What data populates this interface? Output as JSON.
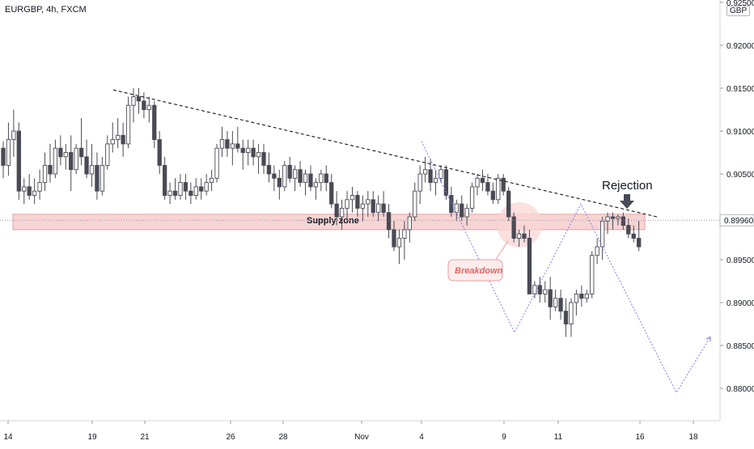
{
  "header": {
    "symbol": "EURGBP, 4h, FXCM",
    "currency": "GBP"
  },
  "chart_data": {
    "type": "candlestick",
    "y_range": [
      0.875,
      0.925
    ],
    "y_ticks": [
      "0.92500",
      "0.92000",
      "0.91500",
      "0.91000",
      "0.90500",
      "0.90000",
      "0.89500",
      "0.89000",
      "0.88500",
      "0.88000"
    ],
    "x_ticks": [
      "14",
      "19",
      "21",
      "26",
      "28",
      "Nov",
      "4",
      "9",
      "11",
      "16",
      "18"
    ],
    "current_price": 0.8996,
    "candles": [
      [
        0.908,
        0.9088,
        0.9045,
        0.906
      ],
      [
        0.906,
        0.911,
        0.9048,
        0.909
      ],
      [
        0.909,
        0.9125,
        0.907,
        0.91
      ],
      [
        0.91,
        0.911,
        0.902,
        0.903
      ],
      [
        0.903,
        0.9045,
        0.9015,
        0.9035
      ],
      [
        0.9035,
        0.905,
        0.902,
        0.9025
      ],
      [
        0.9025,
        0.9045,
        0.9015,
        0.903
      ],
      [
        0.903,
        0.9055,
        0.902,
        0.904
      ],
      [
        0.904,
        0.9075,
        0.903,
        0.906
      ],
      [
        0.906,
        0.9085,
        0.904,
        0.905
      ],
      [
        0.905,
        0.909,
        0.9045,
        0.908
      ],
      [
        0.908,
        0.9095,
        0.906,
        0.907
      ],
      [
        0.907,
        0.9085,
        0.9055,
        0.9075
      ],
      [
        0.9075,
        0.9095,
        0.903,
        0.9055
      ],
      [
        0.9055,
        0.9085,
        0.905,
        0.908
      ],
      [
        0.908,
        0.9115,
        0.906,
        0.907
      ],
      [
        0.907,
        0.909,
        0.9045,
        0.905
      ],
      [
        0.905,
        0.9085,
        0.9035,
        0.906
      ],
      [
        0.906,
        0.9075,
        0.902,
        0.903
      ],
      [
        0.903,
        0.907,
        0.9025,
        0.906
      ],
      [
        0.906,
        0.9095,
        0.9055,
        0.9085
      ],
      [
        0.9085,
        0.911,
        0.9075,
        0.909
      ],
      [
        0.909,
        0.9115,
        0.908,
        0.9095
      ],
      [
        0.9095,
        0.911,
        0.907,
        0.9085
      ],
      [
        0.9085,
        0.914,
        0.908,
        0.913
      ],
      [
        0.913,
        0.915,
        0.911,
        0.914
      ],
      [
        0.914,
        0.915,
        0.912,
        0.9135
      ],
      [
        0.9135,
        0.9145,
        0.9115,
        0.9125
      ],
      [
        0.9125,
        0.914,
        0.911,
        0.913
      ],
      [
        0.913,
        0.9135,
        0.908,
        0.909
      ],
      [
        0.909,
        0.91,
        0.905,
        0.906
      ],
      [
        0.906,
        0.907,
        0.902,
        0.9025
      ],
      [
        0.9025,
        0.904,
        0.9015,
        0.903
      ],
      [
        0.903,
        0.9045,
        0.902,
        0.9025
      ],
      [
        0.9025,
        0.905,
        0.902,
        0.904
      ],
      [
        0.904,
        0.905,
        0.902,
        0.903
      ],
      [
        0.903,
        0.904,
        0.9015,
        0.9025
      ],
      [
        0.9025,
        0.9045,
        0.902,
        0.9035
      ],
      [
        0.9035,
        0.9045,
        0.902,
        0.903
      ],
      [
        0.903,
        0.905,
        0.9025,
        0.904
      ],
      [
        0.904,
        0.9055,
        0.903,
        0.9045
      ],
      [
        0.9045,
        0.9085,
        0.904,
        0.908
      ],
      [
        0.908,
        0.9105,
        0.907,
        0.909
      ],
      [
        0.909,
        0.91,
        0.907,
        0.908
      ],
      [
        0.908,
        0.91,
        0.906,
        0.9085
      ],
      [
        0.9085,
        0.9105,
        0.9075,
        0.908
      ],
      [
        0.908,
        0.909,
        0.9055,
        0.9075
      ],
      [
        0.9075,
        0.909,
        0.906,
        0.908
      ],
      [
        0.908,
        0.909,
        0.906,
        0.907
      ],
      [
        0.907,
        0.9085,
        0.905,
        0.9075
      ],
      [
        0.9075,
        0.9085,
        0.905,
        0.906
      ],
      [
        0.906,
        0.9075,
        0.904,
        0.905
      ],
      [
        0.905,
        0.906,
        0.903,
        0.9045
      ],
      [
        0.9045,
        0.9055,
        0.902,
        0.9035
      ],
      [
        0.9035,
        0.9065,
        0.903,
        0.906
      ],
      [
        0.906,
        0.907,
        0.904,
        0.9045
      ],
      [
        0.9045,
        0.906,
        0.903,
        0.9055
      ],
      [
        0.9055,
        0.9065,
        0.9035,
        0.904
      ],
      [
        0.904,
        0.9055,
        0.9025,
        0.905
      ],
      [
        0.905,
        0.906,
        0.903,
        0.9035
      ],
      [
        0.9035,
        0.9045,
        0.902,
        0.904
      ],
      [
        0.904,
        0.9055,
        0.903,
        0.905
      ],
      [
        0.905,
        0.906,
        0.903,
        0.904
      ],
      [
        0.904,
        0.905,
        0.901,
        0.9015
      ],
      [
        0.9015,
        0.903,
        0.899,
        0.9
      ],
      [
        0.9,
        0.902,
        0.8985,
        0.901
      ],
      [
        0.901,
        0.903,
        0.8995,
        0.902
      ],
      [
        0.902,
        0.9035,
        0.9005,
        0.9025
      ],
      [
        0.9025,
        0.903,
        0.9,
        0.901
      ],
      [
        0.901,
        0.9025,
        0.8995,
        0.9015
      ],
      [
        0.9015,
        0.903,
        0.9,
        0.902
      ],
      [
        0.902,
        0.903,
        0.9,
        0.9005
      ],
      [
        0.9005,
        0.9025,
        0.8995,
        0.9015
      ],
      [
        0.9015,
        0.903,
        0.9,
        0.9005
      ],
      [
        0.9005,
        0.9015,
        0.8975,
        0.8985
      ],
      [
        0.8985,
        0.8995,
        0.896,
        0.8965
      ],
      [
        0.8965,
        0.8985,
        0.8945,
        0.8975
      ],
      [
        0.8975,
        0.8995,
        0.895,
        0.8985
      ],
      [
        0.8985,
        0.9005,
        0.897,
        0.9
      ],
      [
        0.9,
        0.904,
        0.8995,
        0.903
      ],
      [
        0.903,
        0.906,
        0.9015,
        0.905
      ],
      [
        0.905,
        0.907,
        0.904,
        0.9055
      ],
      [
        0.9055,
        0.9068,
        0.903,
        0.904
      ],
      [
        0.904,
        0.9055,
        0.9025,
        0.9045
      ],
      [
        0.9045,
        0.906,
        0.904,
        0.9055
      ],
      [
        0.9055,
        0.906,
        0.902,
        0.9025
      ],
      [
        0.9025,
        0.9035,
        0.9,
        0.9005
      ],
      [
        0.9005,
        0.902,
        0.8995,
        0.9015
      ],
      [
        0.9015,
        0.9025,
        0.8995,
        0.9
      ],
      [
        0.9,
        0.9015,
        0.899,
        0.901
      ],
      [
        0.901,
        0.904,
        0.9005,
        0.9035
      ],
      [
        0.9035,
        0.905,
        0.9025,
        0.9045
      ],
      [
        0.9045,
        0.9055,
        0.903,
        0.904
      ],
      [
        0.904,
        0.905,
        0.9025,
        0.903
      ],
      [
        0.903,
        0.904,
        0.9015,
        0.902
      ],
      [
        0.902,
        0.905,
        0.9015,
        0.9045
      ],
      [
        0.9045,
        0.905,
        0.9025,
        0.903
      ],
      [
        0.903,
        0.9035,
        0.8995,
        0.9
      ],
      [
        0.9,
        0.9005,
        0.897,
        0.8975
      ],
      [
        0.8975,
        0.8985,
        0.8965,
        0.898
      ],
      [
        0.898,
        0.899,
        0.897,
        0.8975
      ],
      [
        0.8975,
        0.8985,
        0.891,
        0.891
      ],
      [
        0.891,
        0.8925,
        0.8905,
        0.892
      ],
      [
        0.892,
        0.893,
        0.89,
        0.891
      ],
      [
        0.891,
        0.8925,
        0.89,
        0.8915
      ],
      [
        0.8915,
        0.893,
        0.888,
        0.8895
      ],
      [
        0.8895,
        0.8915,
        0.889,
        0.8905
      ],
      [
        0.8905,
        0.8915,
        0.888,
        0.889
      ],
      [
        0.889,
        0.8905,
        0.886,
        0.8875
      ],
      [
        0.8875,
        0.8905,
        0.886,
        0.89
      ],
      [
        0.89,
        0.8915,
        0.8885,
        0.891
      ],
      [
        0.891,
        0.892,
        0.8895,
        0.8905
      ],
      [
        0.8905,
        0.8915,
        0.89,
        0.891
      ],
      [
        0.891,
        0.896,
        0.8905,
        0.8955
      ],
      [
        0.8955,
        0.8975,
        0.8945,
        0.8965
      ],
      [
        0.8965,
        0.9,
        0.895,
        0.8995
      ],
      [
        0.8995,
        0.9005,
        0.898,
        0.9
      ],
      [
        0.9,
        0.9005,
        0.8985,
        0.8998
      ],
      [
        0.8998,
        0.9003,
        0.899,
        0.9
      ],
      [
        0.9,
        0.9005,
        0.8985,
        0.899
      ],
      [
        0.899,
        0.8998,
        0.8975,
        0.898
      ],
      [
        0.898,
        0.899,
        0.897,
        0.8975
      ],
      [
        0.8975,
        0.8995,
        0.896,
        0.8965
      ]
    ],
    "annotations": {
      "supply_zone_label": "Supply zone",
      "supply_zone_range": [
        0.8985,
        0.9003
      ],
      "breakdown_label": "Breakdown",
      "rejection_label": "Rejection"
    },
    "trendline": {
      "from": [
        140,
        0.9148
      ],
      "to": [
        812,
        0.9
      ]
    },
    "projection_paths": [
      [
        [
          521,
          0.9088
        ],
        [
          636,
          0.8865
        ],
        [
          718,
          0.9015
        ],
        [
          836,
          0.8795
        ],
        [
          878,
          0.886
        ]
      ]
    ],
    "colors": {
      "candle": "#4a4a55",
      "zone_fill": "#f7d4d4",
      "zone_border": "#e8a0a0",
      "projection": "#7b7fe8",
      "axis_text": "#131722",
      "breakdown_fill": "#f9d6d6",
      "breakdown_text": "#e06666"
    }
  }
}
